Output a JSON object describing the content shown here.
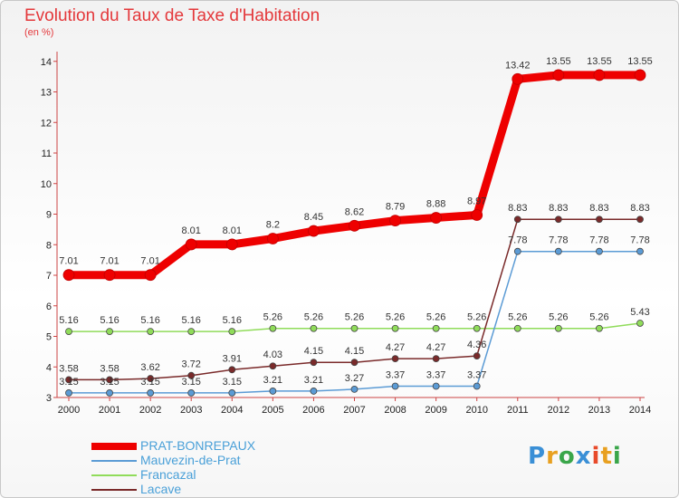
{
  "chart_data": {
    "type": "line",
    "title": "Evolution du Taux de Taxe d'Habitation",
    "ylabel": "(en %)",
    "x": [
      2000,
      2001,
      2002,
      2003,
      2004,
      2005,
      2006,
      2007,
      2008,
      2009,
      2010,
      2011,
      2012,
      2013,
      2014
    ],
    "yticks": [
      3,
      4,
      5,
      6,
      7,
      8,
      9,
      10,
      11,
      12,
      13,
      14
    ],
    "ylim": [
      3,
      14.2
    ],
    "grid": false,
    "legend_position": "bottom-left",
    "series": [
      {
        "name": "PRAT-BONREPAUX",
        "color": "#ee0000",
        "values": [
          7.01,
          7.01,
          7.01,
          8.01,
          8.01,
          8.2,
          8.45,
          8.62,
          8.79,
          8.88,
          8.97,
          13.42,
          13.55,
          13.55,
          13.55
        ],
        "labels": [
          "7.01",
          "7.01",
          "7.01",
          "8.01",
          "8.01",
          "8.2",
          "8.45",
          "8.62",
          "8.79",
          "8.88",
          "8.97",
          "13.42",
          "13.55",
          "13.55",
          "13.55"
        ]
      },
      {
        "name": "Mauvezin-de-Prat",
        "color": "#5b9bd5",
        "values": [
          3.15,
          3.15,
          3.15,
          3.15,
          3.15,
          3.21,
          3.21,
          3.27,
          3.37,
          3.37,
          3.37,
          7.78,
          7.78,
          7.78,
          7.78
        ],
        "labels": [
          "3.15",
          "3.15",
          "3.15",
          "3.15",
          "3.15",
          "3.21",
          "3.21",
          "3.27",
          "3.37",
          "3.37",
          "3.37",
          "7.78",
          "7.78",
          "7.78",
          "7.78"
        ]
      },
      {
        "name": "Francazal",
        "color": "#90dc5a",
        "values": [
          5.16,
          5.16,
          5.16,
          5.16,
          5.16,
          5.26,
          5.26,
          5.26,
          5.26,
          5.26,
          5.26,
          5.26,
          5.26,
          5.26,
          5.43
        ],
        "labels": [
          "5.16",
          "5.16",
          "5.16",
          "5.16",
          "5.16",
          "5.26",
          "5.26",
          "5.26",
          "5.26",
          "5.26",
          "5.26",
          "5.26",
          "5.26",
          "5.26",
          "5.43"
        ]
      },
      {
        "name": "Lacave",
        "color": "#7a2a2a",
        "values": [
          3.58,
          3.58,
          3.62,
          3.72,
          3.91,
          4.03,
          4.15,
          4.15,
          4.27,
          4.27,
          4.36,
          8.83,
          8.83,
          8.83,
          8.83
        ],
        "labels": [
          "3.58",
          "3.58",
          "3.62",
          "3.72",
          "3.91",
          "4.03",
          "4.15",
          "4.15",
          "4.27",
          "4.27",
          "4.36",
          "8.83",
          "8.83",
          "8.83",
          "8.83"
        ]
      }
    ]
  },
  "logo": {
    "text": "Proxiti",
    "colors": [
      "#3a8fd6",
      "#e8a020",
      "#3aa64a",
      "#3a8fd6",
      "#e84a2a",
      "#e8a020",
      "#3aa64a"
    ]
  }
}
